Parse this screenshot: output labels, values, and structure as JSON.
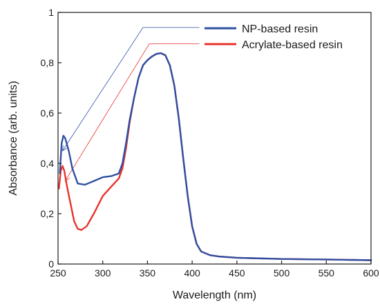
{
  "chart_data": {
    "type": "line",
    "title": "",
    "xlabel": "Wavelength (nm)",
    "ylabel": "Absorbance (arb. units)",
    "xlim": [
      250,
      600
    ],
    "ylim": [
      0,
      1
    ],
    "x_ticks": [
      250,
      300,
      350,
      400,
      450,
      500,
      550,
      600
    ],
    "x_tick_labels": [
      "250",
      "300",
      "350",
      "400",
      "450",
      "500",
      "550",
      "600"
    ],
    "y_ticks": [
      0,
      0.2,
      0.4,
      0.6,
      0.8,
      1
    ],
    "y_tick_labels": [
      "0",
      "0,2",
      "0,4",
      "0,6",
      "0,8",
      "1"
    ],
    "grid": false,
    "legend_position": "top-right",
    "series": [
      {
        "name": "NP-based resin",
        "color": "#2e4fa3",
        "x": [
          252,
          254,
          256,
          258,
          262,
          266,
          272,
          280,
          290,
          300,
          310,
          318,
          322,
          326,
          330,
          335,
          340,
          345,
          350,
          355,
          360,
          365,
          370,
          375,
          380,
          385,
          390,
          395,
          400,
          405,
          410,
          420,
          430,
          450,
          500,
          550,
          600
        ],
        "y": [
          0.36,
          0.48,
          0.51,
          0.5,
          0.45,
          0.38,
          0.32,
          0.315,
          0.33,
          0.345,
          0.35,
          0.36,
          0.4,
          0.48,
          0.57,
          0.66,
          0.74,
          0.79,
          0.81,
          0.825,
          0.835,
          0.838,
          0.83,
          0.79,
          0.71,
          0.58,
          0.42,
          0.27,
          0.15,
          0.08,
          0.05,
          0.035,
          0.03,
          0.025,
          0.02,
          0.018,
          0.015
        ]
      },
      {
        "name": "Acrylate-based resin",
        "color": "#e8322a",
        "x": [
          251,
          253,
          255,
          257,
          260,
          264,
          268,
          272,
          276,
          282,
          290,
          300,
          310,
          318,
          322,
          326,
          330,
          335,
          340,
          345,
          350,
          355,
          360,
          365,
          370,
          375,
          380,
          385,
          390,
          395,
          400,
          405,
          410,
          420,
          430,
          450,
          500,
          550,
          600
        ],
        "y": [
          0.3,
          0.37,
          0.39,
          0.37,
          0.31,
          0.24,
          0.17,
          0.14,
          0.135,
          0.15,
          0.2,
          0.27,
          0.31,
          0.34,
          0.38,
          0.46,
          0.56,
          0.66,
          0.74,
          0.79,
          0.81,
          0.825,
          0.835,
          0.838,
          0.83,
          0.79,
          0.71,
          0.58,
          0.42,
          0.27,
          0.15,
          0.08,
          0.05,
          0.035,
          0.03,
          0.025,
          0.02,
          0.018,
          0.015
        ]
      }
    ],
    "annotations": [
      {
        "series": "NP-based resin",
        "from": [
          345,
          0.94
        ],
        "to": [
          255,
          0.45
        ],
        "tail_end_x": 408
      },
      {
        "series": "Acrylate-based resin",
        "from": [
          352,
          0.875
        ],
        "to": [
          258,
          0.33
        ],
        "tail_end_x": 408
      }
    ]
  }
}
